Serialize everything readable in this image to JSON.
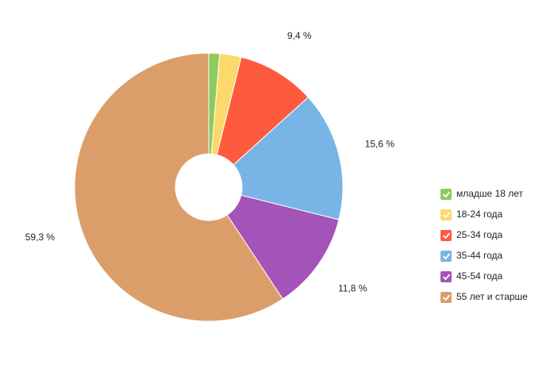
{
  "chart_data": {
    "type": "donut",
    "categories": [
      "младше 18 лет",
      "18-24 года",
      "25-34 года",
      "35-44 года",
      "45-54 года",
      "55 лет и старше"
    ],
    "values": [
      1.3,
      2.6,
      9.4,
      15.6,
      11.8,
      59.3
    ],
    "value_labels": [
      null,
      null,
      "9,4 %",
      "15,6 %",
      "11,8 %",
      "59,3 %"
    ],
    "colors": [
      "#8dcb5e",
      "#fdd86b",
      "#fe5b3e",
      "#78b5e6",
      "#a454b8",
      "#db9e6a"
    ],
    "legend": "right"
  }
}
